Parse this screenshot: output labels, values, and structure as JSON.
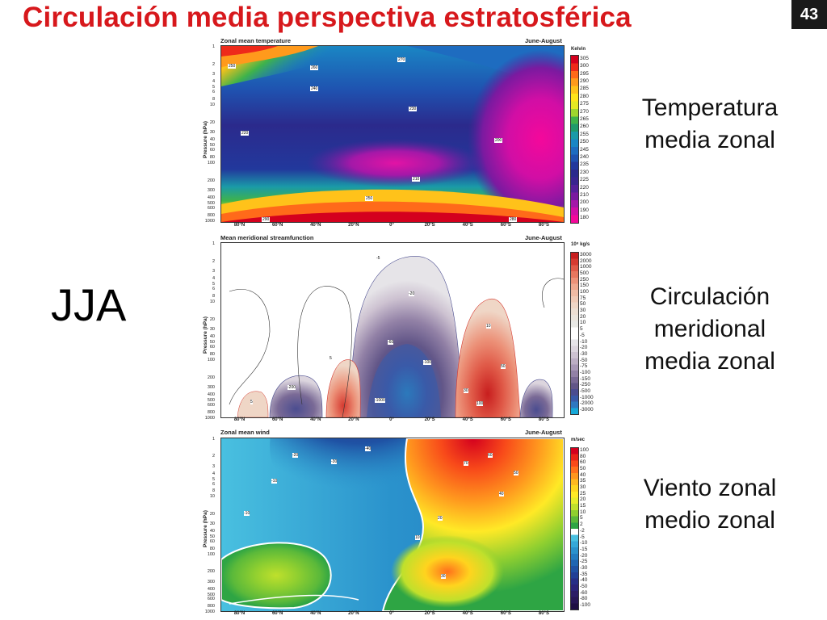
{
  "slide": {
    "title": "Circulación media perspectiva estratosférica",
    "number": "43",
    "season_label": "JJA"
  },
  "captions": {
    "temperature": [
      "Temperatura",
      "media zonal"
    ],
    "streamfunction": [
      "Circulación",
      "meridional",
      "media zonal"
    ],
    "wind": [
      "Viento zonal",
      "medio zonal"
    ]
  },
  "panels": {
    "temperature": {
      "title": "Zonal mean temperature",
      "season": "June-August",
      "ylabel": "Pressure (hPa)",
      "unit": "Kelvin",
      "scale": [
        "305",
        "300",
        "295",
        "290",
        "285",
        "280",
        "275",
        "270",
        "265",
        "260",
        "255",
        "250",
        "245",
        "240",
        "235",
        "230",
        "225",
        "220",
        "210",
        "200",
        "190",
        "180"
      ],
      "scale_colors": [
        "#d4001e",
        "#ee2a1a",
        "#ff6a1a",
        "#ff9a1c",
        "#ffc21a",
        "#ffe31a",
        "#e4e823",
        "#9fd62e",
        "#3fb34a",
        "#1f9a6b",
        "#1a9aa8",
        "#1a86c4",
        "#1e6cc0",
        "#1f52b0",
        "#22389c",
        "#2b2a8c",
        "#3a2590",
        "#55219a",
        "#7a1aa0",
        "#a418a8",
        "#d10ea5",
        "#f4089b"
      ],
      "contour_labels": [
        "250",
        "260",
        "270",
        "240",
        "230",
        "220",
        "210",
        "200",
        "250",
        "290",
        "280"
      ]
    },
    "streamfunction": {
      "title": "Mean meridional streamfunction",
      "season": "June-August",
      "ylabel": "Pressure (hPa)",
      "unit": "10⁸ kg/s",
      "scale": [
        "3000",
        "2000",
        "1000",
        "500",
        "250",
        "150",
        "100",
        "75",
        "50",
        "30",
        "20",
        "10",
        "5",
        "-5",
        "-10",
        "-20",
        "-30",
        "-50",
        "-75",
        "-100",
        "-150",
        "-250",
        "-500",
        "-1000",
        "-2000",
        "-3000"
      ],
      "scale_colors": [
        "#c81e1e",
        "#d63a30",
        "#e05a48",
        "#e7775f",
        "#ec9178",
        "#efa88f",
        "#f0bba4",
        "#f0cab6",
        "#efd6c6",
        "#eddfd3",
        "#ebe5dd",
        "#e9e9e6",
        "#ffffff",
        "#ffffff",
        "#e6e4e8",
        "#dcd5de",
        "#cdc2d1",
        "#bcaec4",
        "#a898b6",
        "#9281a6",
        "#7a6a96",
        "#625688",
        "#4b4d90",
        "#3a5aa8",
        "#2f78c0",
        "#17a8d8"
      ],
      "contour_labels": [
        "-5",
        "-20",
        "-60",
        "-100",
        "5",
        "10",
        "50",
        "-1000",
        "-200",
        "30",
        "100",
        "5"
      ]
    },
    "wind": {
      "title": "Zonal mean wind",
      "season": "June-August",
      "ylabel": "Pressure (hPa)",
      "unit": "m/sec",
      "scale": [
        "100",
        "80",
        "60",
        "50",
        "40",
        "35",
        "30",
        "25",
        "20",
        "15",
        "10",
        "5",
        "2",
        "-2",
        "-5",
        "-10",
        "-15",
        "-20",
        "-25",
        "-30",
        "-35",
        "-40",
        "-50",
        "-60",
        "-80",
        "-100"
      ],
      "scale_colors": [
        "#d4001e",
        "#ea2418",
        "#f84a1a",
        "#ff701c",
        "#ff961e",
        "#ffb81e",
        "#ffd41e",
        "#ffe926",
        "#e6ec2a",
        "#bfe02c",
        "#8fcf30",
        "#5bb93a",
        "#2ea544",
        "#ffffff",
        "#49c0e0",
        "#35a8d8",
        "#2a92cc",
        "#227cc0",
        "#1f66b2",
        "#1f52a4",
        "#213f96",
        "#262e86",
        "#2a2378",
        "#2b1c66",
        "#271656",
        "#1f0f44"
      ],
      "contour_labels": [
        "-40",
        "-30",
        "-20",
        "-10",
        "10",
        "20",
        "30",
        "40",
        "50",
        "60",
        "70",
        "-10"
      ]
    },
    "pressure_ticks": [
      "1",
      "2",
      "3",
      "4",
      "5",
      "6",
      "8",
      "10",
      "20",
      "30",
      "40",
      "50",
      "60",
      "80",
      "100",
      "200",
      "300",
      "400",
      "500",
      "600",
      "800",
      "1000"
    ],
    "lat_ticks": [
      "80°N",
      "60°N",
      "40°N",
      "20°N",
      "0°",
      "20°S",
      "40°S",
      "60°S",
      "80°S"
    ]
  }
}
